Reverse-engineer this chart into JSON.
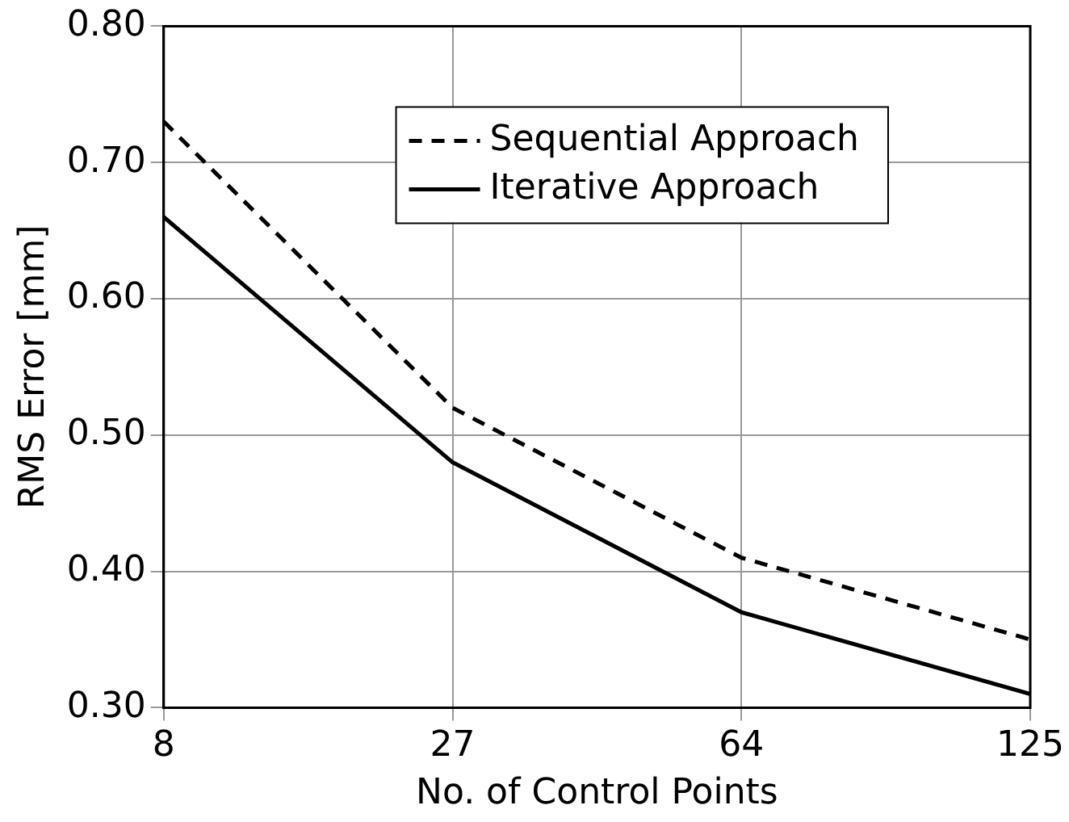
{
  "chart_data": {
    "type": "line",
    "xlabel": "No. of Control Points",
    "ylabel": "RMS Error [mm]",
    "categories": [
      "8",
      "27",
      "64",
      "125"
    ],
    "series": [
      {
        "name": "Sequential Approach",
        "color": "#000000",
        "line_style": "dashed",
        "values": [
          0.73,
          0.52,
          0.41,
          0.35
        ]
      },
      {
        "name": "Iterative Approach",
        "color": "#000000",
        "line_style": "solid",
        "values": [
          0.66,
          0.48,
          0.37,
          0.31
        ]
      }
    ],
    "ylim": [
      0.3,
      0.8
    ],
    "yticks": [
      {
        "value": 0.3,
        "label": "0.30"
      },
      {
        "value": 0.4,
        "label": "0.40"
      },
      {
        "value": 0.5,
        "label": "0.50"
      },
      {
        "value": 0.6,
        "label": "0.60"
      },
      {
        "value": 0.7,
        "label": "0.70"
      },
      {
        "value": 0.8,
        "label": "0.80"
      }
    ],
    "grid": true,
    "legend": "top right",
    "marker": "none"
  }
}
